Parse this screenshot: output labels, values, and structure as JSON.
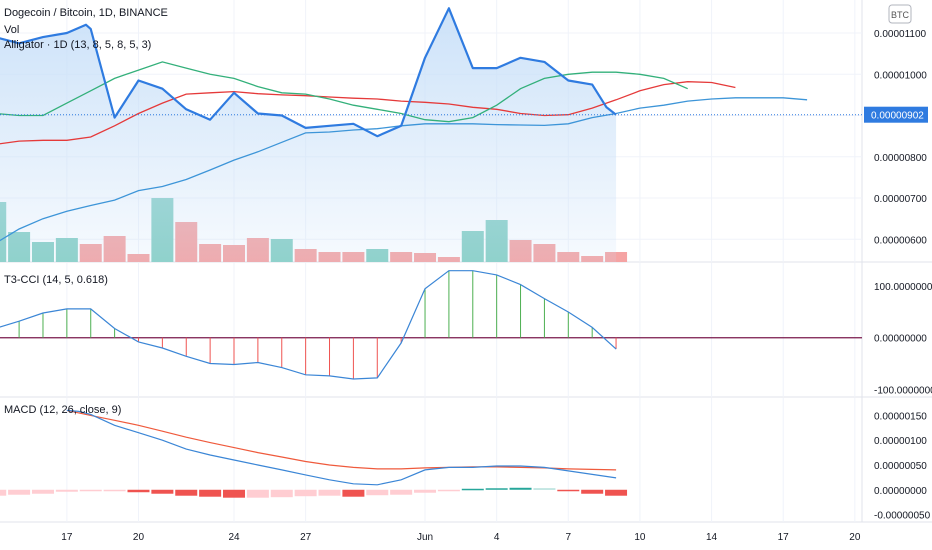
{
  "header": {
    "symbol_line": "Dogecoin / Bitcoin, 1D, BINANCE",
    "vol_label": "Vol",
    "alligator_label": "Alligator · 1D (13, 8, 5, 8, 5, 3)",
    "currency_badge": "BTC",
    "last_price": "0.00000902"
  },
  "colors": {
    "price_line": "#2f7be0",
    "price_fill": "#c7dff8",
    "jaw": "#e53a3a",
    "teeth": "#33b07a",
    "lips": "#3d95d8",
    "vol_up": "#86cfc4",
    "vol_down": "#f5a3a3",
    "cci_line": "#3b86d6",
    "cci_zero": "#7a1a4c",
    "macd_line": "#3b86d6",
    "signal_line": "#ef5a3c",
    "hist_neg_strong": "#ef5350",
    "hist_neg_weak": "#ffcdd2",
    "hist_pos_strong": "#26a69a",
    "hist_pos_weak": "#b2dfdb"
  },
  "chart_data": [
    {
      "type": "line",
      "name": "price",
      "title": "Dogecoin / Bitcoin, 1D, BINANCE",
      "x": [
        14,
        15,
        16,
        17,
        18,
        19,
        20,
        21,
        22,
        23,
        24,
        25,
        26,
        27,
        28,
        29,
        30,
        31,
        32,
        33,
        34,
        35,
        36,
        37,
        38,
        39,
        40
      ],
      "close": [
        1.09e-05,
        1.075e-05,
        1.09e-05,
        1.1e-05,
        1.12e-05,
        1.11e-05,
        8.95e-06,
        9.85e-06,
        9.65e-06,
        9.15e-06,
        8.9e-06,
        9.55e-06,
        9.05e-06,
        9e-06,
        8.7e-06,
        8.75e-06,
        8.8e-06,
        8.5e-06,
        8.75e-06,
        1.04e-05,
        1.16e-05,
        1.015e-05,
        1.015e-05,
        1.04e-05,
        1.03e-05,
        9.85e-06,
        9.75e-06,
        9.2e-06,
        9.02e-06
      ],
      "x_close": [
        14,
        15,
        16,
        17,
        17.8,
        18,
        19,
        20,
        21,
        22,
        23,
        24,
        25,
        26,
        27,
        28,
        29,
        30,
        31,
        32,
        33,
        34,
        35,
        36,
        37,
        38,
        39,
        39.6,
        40
      ],
      "alligator": {
        "jaw": {
          "x": [
            14,
            15,
            16,
            17,
            18,
            19,
            20,
            21,
            22,
            23,
            24,
            25,
            26,
            27,
            28,
            29,
            30,
            31,
            32,
            33,
            34,
            35,
            36,
            37,
            38,
            39,
            40,
            41,
            42,
            43,
            44,
            45
          ],
          "y": [
            8.3e-06,
            8.38e-06,
            8.4e-06,
            8.4e-06,
            8.48e-06,
            8.75e-06,
            9.05e-06,
            9.3e-06,
            9.52e-06,
            9.55e-06,
            9.58e-06,
            9.53e-06,
            9.5e-06,
            9.48e-06,
            9.45e-06,
            9.42e-06,
            9.4e-06,
            9.35e-06,
            9.32e-06,
            9.28e-06,
            9.2e-06,
            9.15e-06,
            9.05e-06,
            9e-06,
            9.02e-06,
            9.18e-06,
            9.38e-06,
            9.6e-06,
            9.75e-06,
            9.82e-06,
            9.8e-06,
            9.68e-06
          ]
        },
        "teeth": {
          "x": [
            14,
            15,
            16,
            17,
            18,
            19,
            20,
            21,
            22,
            23,
            24,
            25,
            26,
            27,
            28,
            29,
            30,
            31,
            32,
            33,
            34,
            35,
            36,
            37,
            38,
            39,
            40,
            41,
            42,
            43
          ],
          "y": [
            9.05e-06,
            9e-06,
            9e-06,
            9.3e-06,
            9.6e-06,
            9.9e-06,
            1.01e-05,
            1.03e-05,
            1.015e-05,
            1e-05,
            9.9e-06,
            9.7e-06,
            9.55e-06,
            9.52e-06,
            9.4e-06,
            9.25e-06,
            9.15e-06,
            9.05e-06,
            8.9e-06,
            8.85e-06,
            8.95e-06,
            9.25e-06,
            9.65e-06,
            9.9e-06,
            1e-05,
            1.005e-05,
            1.005e-05,
            1e-05,
            9.9e-06,
            9.65e-06
          ]
        },
        "lips": {
          "x": [
            14,
            15,
            16,
            17,
            18,
            19,
            20,
            21,
            22,
            23,
            24,
            25,
            26,
            27,
            28,
            29,
            30,
            31,
            32,
            33,
            34,
            35,
            36,
            37,
            38,
            39,
            40,
            41,
            42,
            43,
            44,
            45,
            46,
            47,
            48
          ],
          "y": [
            5.9e-06,
            6.25e-06,
            6.5e-06,
            6.68e-06,
            6.82e-06,
            6.95e-06,
            7.18e-06,
            7.28e-06,
            7.45e-06,
            7.68e-06,
            7.92e-06,
            8.12e-06,
            8.35e-06,
            8.58e-06,
            8.6e-06,
            8.65e-06,
            8.68e-06,
            8.75e-06,
            8.8e-06,
            8.8e-06,
            8.8e-06,
            8.78e-06,
            8.77e-06,
            8.76e-06,
            8.8e-06,
            8.95e-06,
            9.05e-06,
            9.18e-06,
            9.25e-06,
            9.35e-06,
            9.4e-06,
            9.43e-06,
            9.43e-06,
            9.43e-06,
            9.38e-06
          ]
        }
      },
      "ylim": [
        5.45e-06,
        1.18e-05
      ],
      "y_ticks": [
        "0.00001100",
        "0.00001000",
        "0.00000900",
        "0.00000800",
        "0.00000700",
        "0.00000600"
      ],
      "x_ticks": [
        {
          "x": 17,
          "label": "17"
        },
        {
          "x": 20,
          "label": "20"
        },
        {
          "x": 24,
          "label": "24"
        },
        {
          "x": 27,
          "label": "27"
        },
        {
          "x": 32,
          "label": "Jun"
        },
        {
          "x": 35,
          "label": "4"
        },
        {
          "x": 38,
          "label": "7"
        },
        {
          "x": 41,
          "label": "10"
        },
        {
          "x": 44,
          "label": "14"
        },
        {
          "x": 47,
          "label": "17"
        },
        {
          "x": 50,
          "label": "20"
        }
      ],
      "xlim": [
        14.2,
        50.3
      ]
    },
    {
      "type": "bar",
      "name": "volume",
      "x": [
        14,
        15,
        16,
        17,
        18,
        19,
        20,
        21,
        22,
        23,
        24,
        25,
        26,
        27,
        28,
        29,
        30,
        31,
        32,
        33,
        34,
        35,
        36,
        37,
        38,
        39,
        40
      ],
      "values": [
        60,
        30,
        20,
        24,
        18,
        26,
        8,
        64,
        40,
        18,
        17,
        24,
        23,
        13,
        10,
        10,
        13,
        10,
        9,
        5,
        31,
        42,
        22,
        18,
        10,
        6,
        10
      ],
      "up": [
        true,
        true,
        true,
        true,
        false,
        false,
        false,
        true,
        false,
        false,
        false,
        false,
        true,
        false,
        false,
        false,
        true,
        false,
        false,
        false,
        true,
        true,
        false,
        false,
        false,
        false,
        false
      ]
    },
    {
      "type": "line",
      "name": "T3-CCI",
      "title": "T3-CCI (14, 5, 0.618)",
      "x": [
        14,
        15,
        16,
        17,
        18,
        19,
        20,
        21,
        22,
        23,
        24,
        25,
        26,
        27,
        28,
        29,
        30,
        31,
        32,
        33,
        34,
        35,
        36,
        37,
        38,
        39,
        40
      ],
      "values": [
        18,
        32,
        48,
        56,
        56,
        18,
        -8,
        -20,
        -36,
        -50,
        -52,
        -48,
        -58,
        -72,
        -74,
        -80,
        -78,
        -10,
        95,
        130,
        130,
        122,
        103,
        76,
        50,
        20,
        -22
      ],
      "ylim": [
        -115,
        145
      ],
      "y_ticks": [
        "100.00000000",
        "0.00000000",
        "-100.00000000"
      ]
    },
    {
      "type": "line",
      "name": "MACD",
      "title": "MACD (12, 26, close, 9)",
      "x": [
        14,
        15,
        16,
        17,
        18,
        19,
        20,
        21,
        22,
        23,
        24,
        25,
        26,
        27,
        28,
        29,
        30,
        31,
        32,
        33,
        34,
        35,
        36,
        37,
        38,
        39,
        40
      ],
      "macd": [
        1.6e-06,
        1.58e-06,
        1.52e-06,
        1.3e-06,
        1.15e-06,
        1e-06,
        8.2e-07,
        7e-07,
        6e-07,
        5e-07,
        4e-07,
        3e-07,
        2e-07,
        1.2e-07,
        1e-07,
        2e-07,
        4e-07,
        4.5e-07,
        4.5e-07,
        4.8e-07,
        4.8e-07,
        4.5e-07,
        3.8e-07,
        2.4e-07
      ],
      "signal": [
        1.6e-06,
        1.55e-06,
        1.5e-06,
        1.4e-06,
        1.3e-06,
        1.18e-06,
        1.06e-06,
        9.5e-07,
        8.5e-07,
        7.5e-07,
        6.6e-07,
        5.7e-07,
        5e-07,
        4.5e-07,
        4.2e-07,
        4.2e-07,
        4.4e-07,
        4.5e-07,
        4.6e-07,
        4.6e-07,
        4.5e-07,
        4.4e-07,
        4.2e-07,
        4e-07
      ],
      "x_macd": [
        17,
        17.5,
        18,
        19,
        20,
        21,
        22,
        23,
        24,
        25,
        26,
        27,
        28,
        29,
        30,
        31,
        32,
        33,
        34,
        35,
        36,
        37,
        38,
        40
      ],
      "histogram": [
        -1.2e-07,
        -1e-07,
        -8e-08,
        -4e-08,
        -1e-08,
        -1e-08,
        -5e-08,
        -8e-08,
        -1.2e-07,
        -1.4e-07,
        -1.6e-07,
        -1.6e-07,
        -1.5e-07,
        -1.3e-07,
        -1.2e-07,
        -1.4e-07,
        -1.1e-07,
        -1e-07,
        -6e-08,
        -2e-08,
        2e-08,
        3e-08,
        4e-08,
        3e-08,
        -3e-08,
        -8e-08,
        -1.2e-07
      ],
      "ylim": [
        -6.5e-07,
        1.85e-06
      ],
      "y_ticks": [
        "0.00000150",
        "0.00000100",
        "0.00000050",
        "0.00000000",
        "-0.00000050"
      ]
    }
  ]
}
